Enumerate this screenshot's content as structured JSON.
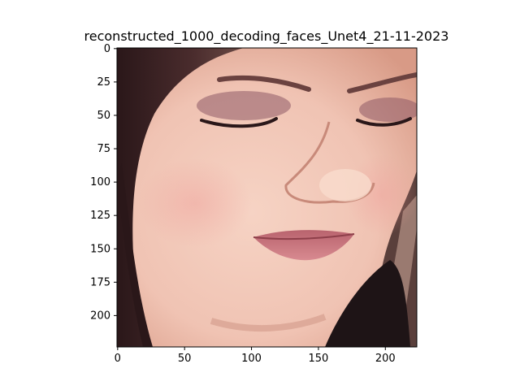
{
  "chart_data": {
    "type": "image",
    "title": "reconstructed_1000_decoding_faces_Unet4_21-11-2023",
    "xlim": [
      0,
      224
    ],
    "ylim": [
      224,
      0
    ],
    "x_ticks": [
      0,
      50,
      100,
      150,
      200
    ],
    "y_ticks": [
      0,
      25,
      50,
      75,
      100,
      125,
      150,
      175,
      200
    ],
    "grid": false,
    "legend": "none",
    "image_content": "close-up of a woman's face with dark hair, eyes looking down, nose and closed lips",
    "colors": {
      "skin": "#f0c3b3",
      "skin_shadow": "#d89a86",
      "hair": "#3a2224",
      "lips": "#c8717b",
      "eyeshadow": "#8e5a66",
      "background_bottom_right": "#1e1416"
    }
  }
}
